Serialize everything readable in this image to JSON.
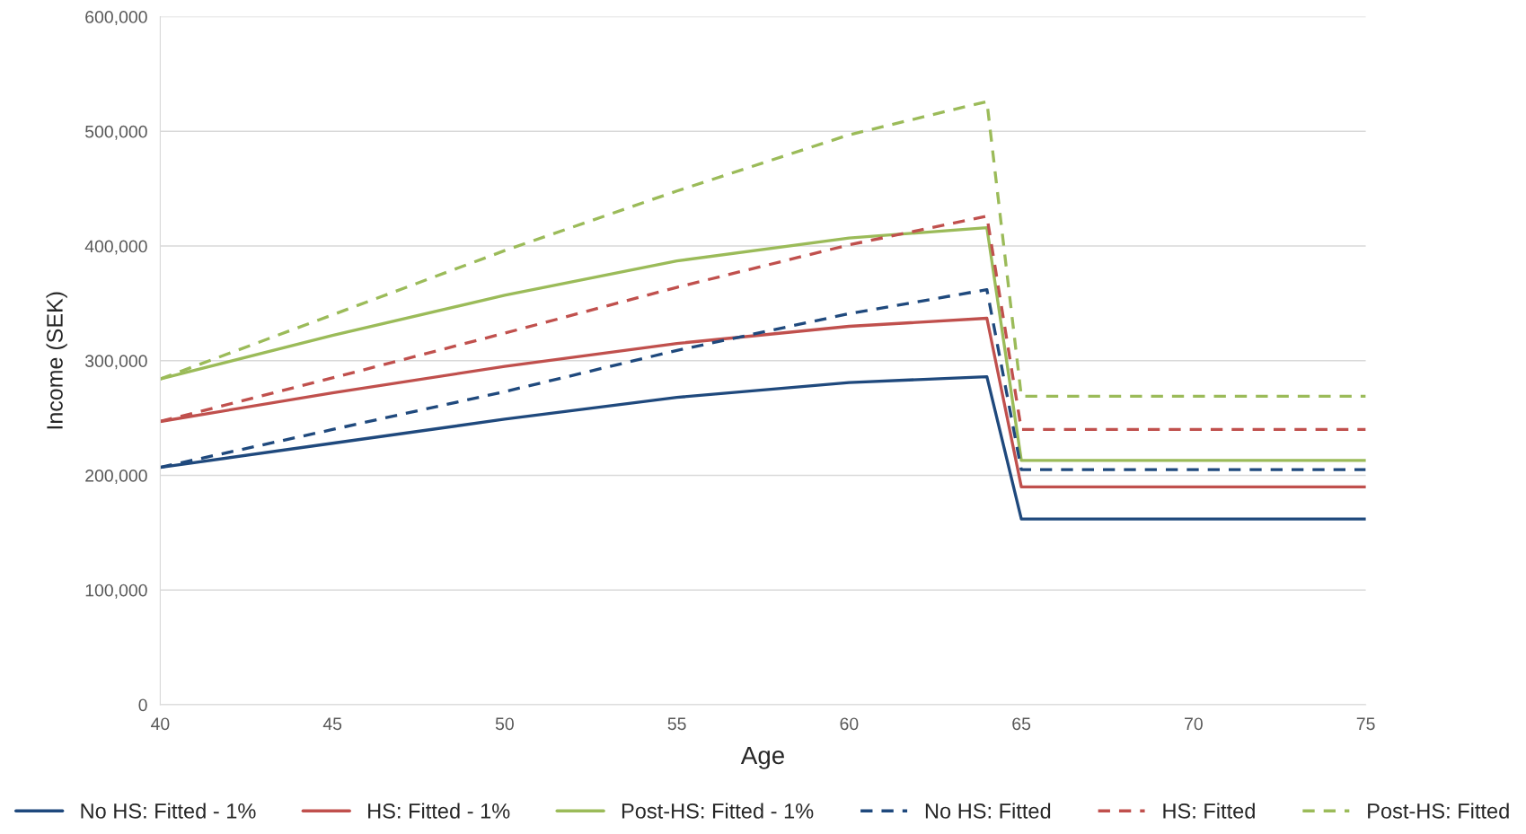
{
  "chart_data": {
    "type": "line",
    "xlabel": "Age",
    "ylabel": "Income (SEK)",
    "x": [
      40,
      45,
      50,
      55,
      60,
      64,
      65,
      75
    ],
    "series": [
      {
        "name": "No HS: Fitted - 1%",
        "color": "#1f497d",
        "line_style": "solid",
        "values": [
          207000,
          228000,
          249000,
          268000,
          281000,
          286000,
          162000,
          162000
        ]
      },
      {
        "name": "HS: Fitted - 1%",
        "color": "#c0504d",
        "line_style": "solid",
        "values": [
          247000,
          272000,
          295000,
          315000,
          330000,
          337000,
          190000,
          190000
        ]
      },
      {
        "name": "Post-HS: Fitted - 1%",
        "color": "#9bbb59",
        "line_style": "solid",
        "values": [
          284000,
          322000,
          357000,
          387000,
          407000,
          416000,
          213000,
          213000
        ]
      },
      {
        "name": "No HS: Fitted",
        "color": "#1f497d",
        "line_style": "dashed",
        "values": [
          207000,
          240000,
          273000,
          309000,
          341000,
          362000,
          205000,
          205000
        ]
      },
      {
        "name": "HS: Fitted",
        "color": "#c0504d",
        "line_style": "dashed",
        "values": [
          247000,
          285000,
          324000,
          364000,
          401000,
          426000,
          240000,
          240000
        ]
      },
      {
        "name": "Post-HS: Fitted",
        "color": "#9bbb59",
        "line_style": "dashed",
        "values": [
          284000,
          340000,
          396000,
          448000,
          497000,
          526000,
          269000,
          269000
        ]
      }
    ],
    "xlim": [
      40,
      75
    ],
    "xticks": [
      40,
      45,
      50,
      55,
      60,
      65,
      70,
      75
    ],
    "ylim": [
      0,
      600000
    ],
    "yticks": [
      0,
      {
        "value": 100000,
        "label": "100,000"
      },
      {
        "value": 200000,
        "label": "200,000"
      },
      {
        "value": 300000,
        "label": "300,000"
      },
      {
        "value": 400000,
        "label": "400,000"
      },
      {
        "value": 500000,
        "label": "500,000"
      },
      {
        "value": 600000,
        "label": "600,000"
      }
    ],
    "grid": "y",
    "legend": "bottom",
    "marker": "none"
  }
}
